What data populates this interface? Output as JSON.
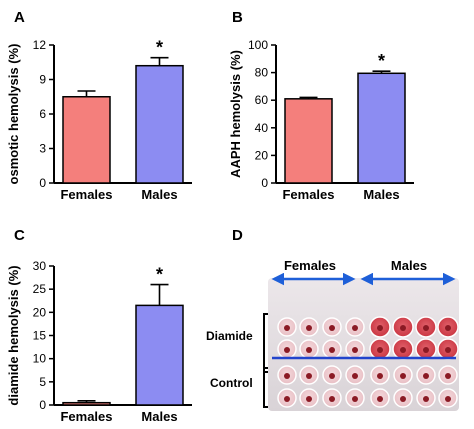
{
  "colors": {
    "females": "#f47f7c",
    "males": "#8c8cf2",
    "axis": "#000000",
    "arrow": "#1e5fd8",
    "divider": "#2244cc"
  },
  "chart_data": [
    {
      "type": "bar",
      "panel": "A",
      "categories": [
        "Females",
        "Males"
      ],
      "values": [
        7.5,
        10.2
      ],
      "errors": [
        0.5,
        0.7
      ],
      "significance": [
        "",
        "*"
      ],
      "ylabel": "osmotic hemolysis (%)",
      "ylim": [
        0,
        12
      ],
      "yticks": [
        "0",
        "3",
        "6",
        "9",
        "12"
      ],
      "grid": false
    },
    {
      "type": "bar",
      "panel": "B",
      "categories": [
        "Females",
        "Males"
      ],
      "values": [
        61,
        79.5
      ],
      "errors": [
        1,
        1.5
      ],
      "significance": [
        "",
        "*"
      ],
      "ylabel": "AAPH hemolysis (%)",
      "ylim": [
        0,
        100
      ],
      "yticks": [
        "0",
        "20",
        "40",
        "60",
        "80",
        "100"
      ],
      "grid": false
    },
    {
      "type": "bar",
      "panel": "C",
      "categories": [
        "Females",
        "Males"
      ],
      "values": [
        0.5,
        21.5
      ],
      "errors": [
        0.4,
        4.5
      ],
      "significance": [
        "",
        "*"
      ],
      "ylabel": "diamide hemolysis (%)",
      "ylim": [
        0,
        30
      ],
      "yticks": [
        "0",
        "5",
        "10",
        "15",
        "20",
        "25",
        "30"
      ],
      "grid": false
    }
  ],
  "photo": {
    "panel": "D",
    "header_left": "Females",
    "header_right": "Males",
    "row_label_top": "Diamide",
    "row_label_bottom": "Control"
  }
}
